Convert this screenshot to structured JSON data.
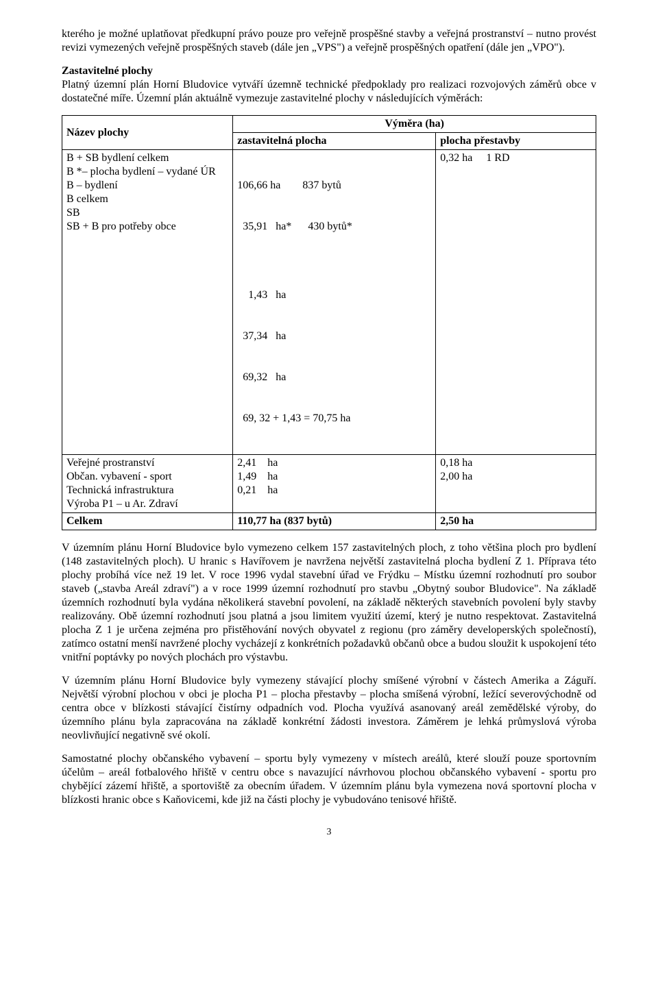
{
  "paragraph_intro": "kterého je možné uplatňovat předkupní právo pouze pro veřejně prospěšné stavby a veřejná prostranství – nutno provést revizi vymezených veřejně prospěšných staveb (dále jen „VPS\") a veřejně prospěšných opatření (dále jen „VPO\").",
  "heading_zastav": "Zastavitelné plochy",
  "para_zastav": "Platný územní plán Horní Bludovice vytváří územně technické předpoklady pro realizaci rozvojových záměrů obce v dostatečné míře. Územní plán aktuálně vymezuje zastavitelné plochy v následujících výměrách:",
  "table": {
    "header": {
      "name": "Název plochy",
      "vymera": "Výměra (ha)",
      "zastav": "zastavitelná plocha",
      "prestav": "plocha přestavby"
    },
    "rows": [
      {
        "name_lines": [
          "B + SB bydlení celkem",
          "B *– plocha bydlení – vydané ÚR",
          "B – bydlení",
          "B celkem",
          "SB",
          "SB + B pro potřeby obce"
        ],
        "zast_lines": [
          "106,66 ha  837 bytů",
          "  35,91   ha*  430 bytů*",
          "",
          "    1,43   ha",
          "  37,34   ha",
          "  69,32   ha",
          "  69, 32 + 1,43 = 70,75 ha"
        ],
        "pres_lines": [
          "0,32 ha  1 RD"
        ]
      },
      {
        "name_lines": [
          "Veřejné prostranství",
          "Občan. vybavení - sport",
          "Technická infrastruktura",
          "Výroba P1 – u Ar. Zdraví"
        ],
        "zast_lines": [
          "2,41 ha",
          "1,49 ha",
          "0,21 ha"
        ],
        "pres_lines": [
          "",
          "0,18 ha",
          "",
          "2,00 ha"
        ]
      },
      {
        "name_lines": [
          "Celkem"
        ],
        "zast_lines": [
          "110,77 ha (837 bytů)"
        ],
        "pres_lines": [
          "2,50 ha"
        ],
        "bold": true
      }
    ]
  },
  "para_after_table_1": "V územním plánu Horní Bludovice bylo vymezeno celkem 157 zastavitelných ploch, z toho většina ploch pro bydlení (148 zastavitelných ploch). U hranic s Havířovem je navržena největší zastavitelná plocha bydlení Z 1. Příprava této plochy probíhá více než 19 let. V roce 1996 vydal stavební úřad ve Frýdku – Místku územní rozhodnutí pro soubor staveb („stavba Areál zdraví\") a v roce 1999 územní rozhodnutí pro stavbu „Obytný soubor Bludovice\". Na základě územních rozhodnutí byla vydána několikerá stavební povolení, na základě některých stavebních povolení byly stavby realizovány. Obě územní rozhodnutí jsou platná a jsou limitem využití území, který je nutno respektovat. Zastavitelná plocha Z 1 je určena zejména pro přistěhování nových obyvatel z regionu (pro záměry developerských společností), zatímco ostatní menší navržené plochy vycházejí z konkrétních požadavků občanů obce a budou sloužit k uspokojení této vnitřní poptávky po nových plochách pro výstavbu.",
  "para_after_table_2": "V územním plánu Horní Bludovice byly vymezeny stávající plochy smíšené výrobní v částech Amerika a Záguří. Největší výrobní plochou v obci je plocha P1 – plocha přestavby – plocha smíšená výrobní, ležící severovýchodně od centra obce v blízkosti stávající čistírny odpadních vod. Plocha využívá asanovaný areál zemědělské výroby, do územního plánu byla zapracována na základě konkrétní žádosti investora. Záměrem je lehká průmyslová výroba neovlivňující negativně své okolí.",
  "para_after_table_3": "Samostatné plochy občanského vybavení – sportu byly vymezeny v místech areálů, které slouží pouze sportovním účelům – areál fotbalového hřiště v centru obce s navazující návrhovou plochou občanského vybavení - sportu pro chybějící zázemí hřiště, a sportoviště za obecním úřadem. V územním plánu byla vymezena nová sportovní plocha v blízkosti hranic obce s Kaňovicemi, kde již na části plochy je vybudováno tenisové hřiště.",
  "page_number": "3"
}
